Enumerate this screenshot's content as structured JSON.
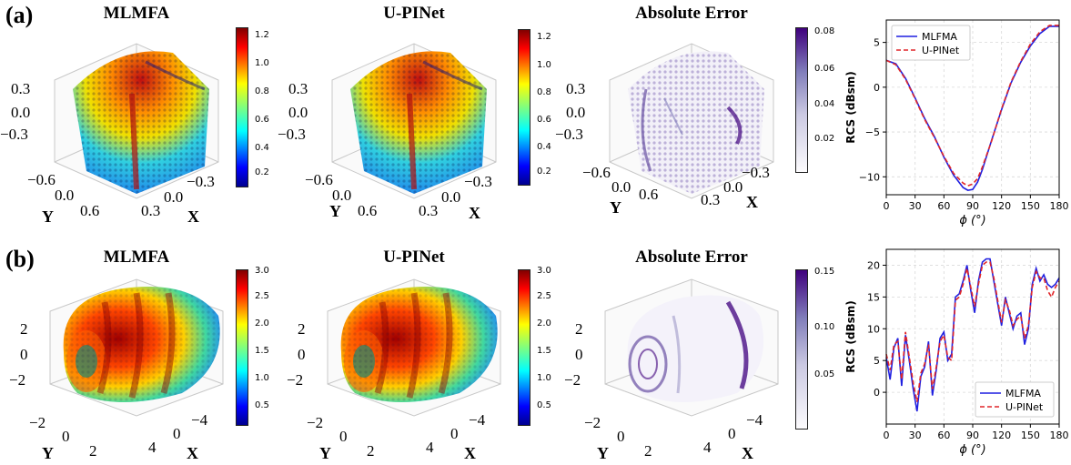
{
  "panels": [
    {
      "label": "(a)",
      "titles": [
        "MLMFA",
        "U-PINet",
        "Absolute Error"
      ],
      "z_ticks": [
        "0.3",
        "0.0",
        "−0.3"
      ],
      "y_ticks": [
        "−0.6",
        "0.0",
        "0.6"
      ],
      "x_ticks": [
        "−0.3",
        "0.0",
        "0.3"
      ],
      "y_label": "Y",
      "x_label": "X",
      "colorbar_field": [
        "1.2",
        "1.0",
        "0.8",
        "0.6",
        "0.4",
        "0.2"
      ],
      "colorbar_error": [
        "0.08",
        "0.06",
        "0.04",
        "0.02"
      ]
    },
    {
      "label": "(b)",
      "titles": [
        "MLMFA",
        "U-PINet",
        "Absolute Error"
      ],
      "z_ticks": [
        "2",
        "0",
        "−2"
      ],
      "y_ticks": [
        "−2",
        "0",
        "2"
      ],
      "x_ticks": [
        "−4",
        "0",
        "4"
      ],
      "y_label": "Y",
      "x_label": "X",
      "colorbar_field": [
        "3.0",
        "2.5",
        "2.0",
        "1.5",
        "1.0",
        "0.5"
      ],
      "colorbar_error": [
        "0.15",
        "0.10",
        "0.05"
      ]
    }
  ],
  "colors": {
    "mlfma_line": "#1f1fe0",
    "upinet_line": "#e0262a",
    "error_dark": "#3f007d",
    "grid": "#d9d9d9"
  },
  "chart_data": [
    {
      "type": "line",
      "xlabel": "ϕ (°)",
      "ylabel": "RCS (dBsm)",
      "xlim": [
        0,
        180
      ],
      "ylim": [
        -12,
        7.5
      ],
      "xticks": [
        0,
        30,
        60,
        90,
        120,
        150,
        180
      ],
      "yticks": [
        -10,
        -5,
        0,
        5
      ],
      "legend_position": "top-left",
      "series": [
        {
          "name": "MLFMA",
          "style": "solid",
          "x": [
            0,
            10,
            20,
            30,
            40,
            50,
            60,
            70,
            80,
            85,
            90,
            95,
            100,
            110,
            120,
            130,
            140,
            150,
            160,
            170,
            180
          ],
          "y": [
            3.0,
            2.6,
            1.0,
            -1.2,
            -3.5,
            -5.5,
            -7.8,
            -9.8,
            -11.2,
            -11.5,
            -11.4,
            -10.6,
            -9.2,
            -5.8,
            -2.5,
            0.5,
            2.8,
            4.6,
            6.0,
            6.8,
            6.8
          ]
        },
        {
          "name": "U-PINet",
          "style": "dashed",
          "x": [
            0,
            10,
            20,
            30,
            40,
            50,
            60,
            70,
            80,
            85,
            90,
            95,
            100,
            110,
            120,
            130,
            140,
            150,
            160,
            170,
            180
          ],
          "y": [
            3.0,
            2.5,
            0.9,
            -1.3,
            -3.6,
            -5.6,
            -7.7,
            -9.6,
            -10.7,
            -11.0,
            -10.8,
            -10.2,
            -8.9,
            -5.9,
            -2.4,
            0.6,
            2.9,
            4.8,
            6.2,
            6.9,
            6.9
          ]
        }
      ]
    },
    {
      "type": "line",
      "xlabel": "ϕ (°)",
      "ylabel": "RCS (dBsm)",
      "xlim": [
        0,
        180
      ],
      "ylim": [
        -5,
        22.5
      ],
      "xticks": [
        0,
        30,
        60,
        90,
        120,
        150,
        180
      ],
      "yticks": [
        0,
        5,
        10,
        15,
        20
      ],
      "legend_position": "bottom-right",
      "series": [
        {
          "name": "MLFMA",
          "style": "solid",
          "x": [
            0,
            4,
            8,
            12,
            16,
            20,
            24,
            28,
            32,
            36,
            40,
            44,
            48,
            52,
            56,
            60,
            64,
            68,
            72,
            76,
            80,
            84,
            88,
            92,
            96,
            100,
            104,
            108,
            112,
            116,
            120,
            124,
            128,
            132,
            136,
            140,
            144,
            148,
            152,
            156,
            160,
            164,
            168,
            172,
            176,
            180
          ],
          "y": [
            5.5,
            2.0,
            7.0,
            8.5,
            1.0,
            9.0,
            5.0,
            0.5,
            -3.0,
            2.5,
            4.0,
            8.0,
            -0.5,
            3.5,
            8.5,
            9.5,
            5.0,
            6.0,
            15.0,
            15.5,
            17.5,
            20.0,
            16.0,
            12.5,
            17.5,
            20.5,
            21.0,
            21.0,
            17.5,
            14.0,
            10.5,
            15.0,
            12.5,
            10.0,
            12.0,
            12.5,
            7.5,
            10.0,
            17.0,
            19.5,
            17.5,
            18.5,
            17.0,
            16.5,
            17.0,
            18.0
          ]
        },
        {
          "name": "U-PINet",
          "style": "dashed",
          "x": [
            0,
            4,
            8,
            12,
            16,
            20,
            24,
            28,
            32,
            36,
            40,
            44,
            48,
            52,
            56,
            60,
            64,
            68,
            72,
            76,
            80,
            84,
            88,
            92,
            96,
            100,
            104,
            108,
            112,
            116,
            120,
            124,
            128,
            132,
            136,
            140,
            144,
            148,
            152,
            156,
            160,
            164,
            168,
            172,
            176,
            180
          ],
          "y": [
            6.0,
            3.5,
            7.5,
            8.0,
            2.0,
            9.5,
            5.5,
            1.5,
            -1.5,
            3.0,
            4.5,
            7.5,
            0.5,
            4.0,
            8.0,
            9.0,
            5.5,
            5.0,
            14.5,
            15.0,
            17.0,
            19.5,
            16.5,
            13.5,
            17.0,
            20.0,
            20.5,
            20.5,
            18.0,
            14.5,
            11.0,
            14.5,
            13.0,
            10.5,
            11.5,
            12.0,
            8.5,
            10.5,
            16.5,
            19.0,
            18.0,
            18.0,
            16.0,
            15.0,
            16.5,
            17.5
          ]
        }
      ]
    }
  ]
}
